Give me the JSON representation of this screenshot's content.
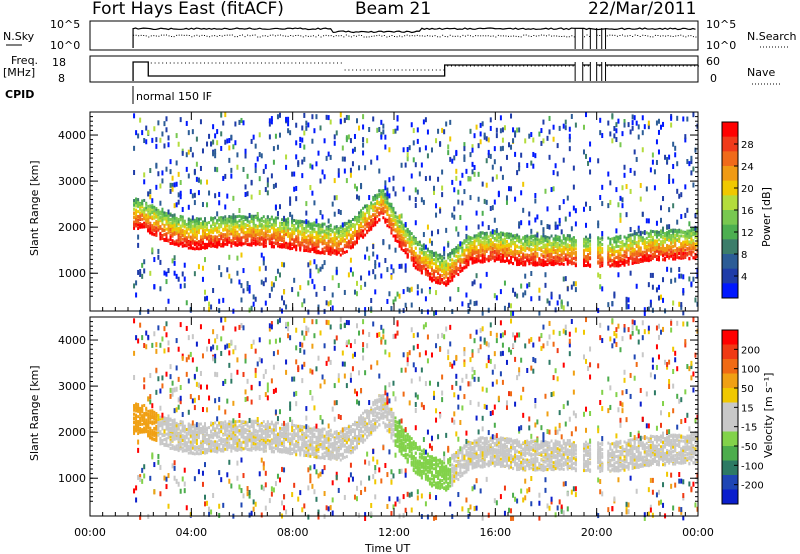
{
  "header": {
    "station": "Fort Hays East (fitACF)",
    "beam": "Beam 21",
    "date": "22/Mar/2011"
  },
  "top_panels": {
    "nsky_label": "N.Sky",
    "nsky_ticks": [
      "10^5",
      "10^0"
    ],
    "nsearch_label": "N.Search",
    "nsearch_ticks": [
      "10^5",
      "10^0"
    ],
    "freq_label": "Freq.",
    "freq_unit": "[MHz]",
    "freq_ticks": [
      "18",
      "8"
    ],
    "nave_label": "Nave",
    "nave_ticks": [
      "60",
      "0"
    ],
    "cpid_label": "CPID",
    "cpid_text": "normal 150 IF"
  },
  "power_colorbar": {
    "label": "Power [dB]",
    "ticks": [
      "28",
      "24",
      "20",
      "16",
      "12",
      "8",
      "4"
    ],
    "colors": [
      "#0018ff",
      "#1f3ca8",
      "#2c5c96",
      "#3c7d6a",
      "#4caf50",
      "#78c850",
      "#b4dc3c",
      "#f0c800",
      "#f09a14",
      "#f06a1a",
      "#f03a1a",
      "#ff0000"
    ]
  },
  "velocity_colorbar": {
    "label": "Velocity [m s⁻¹]",
    "ticks": [
      "200",
      "100",
      "50",
      "15",
      "-15",
      "-50",
      "-100",
      "-200"
    ],
    "colors": [
      "#0a1ecc",
      "#1f46b4",
      "#2d7a64",
      "#4cad4c",
      "#82d24a",
      "#c8c8c8",
      "#c8c8c8",
      "#f0c800",
      "#f0a014",
      "#f06a14",
      "#f03a14",
      "#ff0000"
    ]
  },
  "chart_data": {
    "type": "heatmap",
    "xlabel": "Time UT",
    "ylabel": "Slant Range [km]",
    "x_ticks": [
      "00:00",
      "04:00",
      "08:00",
      "12:00",
      "16:00",
      "20:00",
      "00:00"
    ],
    "x_range_hours": [
      0,
      24
    ],
    "y_ticks": [
      1000,
      2000,
      3000,
      4000
    ],
    "y_range_km": [
      180,
      4500
    ],
    "data_start_hour": 1.7,
    "gaps_hours": [
      [
        19.15,
        19.45
      ],
      [
        19.75,
        20.0
      ],
      [
        20.2,
        20.35
      ]
    ],
    "power_backscatter_band_km": [
      [
        2.0,
        2250
      ],
      [
        3.0,
        1950
      ],
      [
        4.0,
        1800
      ],
      [
        5.0,
        1850
      ],
      [
        6.0,
        1880
      ],
      [
        7.0,
        1860
      ],
      [
        8.0,
        1800
      ],
      [
        9.0,
        1720
      ],
      [
        9.8,
        1650
      ],
      [
        10.4,
        1850
      ],
      [
        11.0,
        2200
      ],
      [
        11.5,
        2500
      ],
      [
        12.0,
        2000
      ],
      [
        12.8,
        1400
      ],
      [
        13.5,
        1100
      ],
      [
        14.0,
        1000
      ],
      [
        15.0,
        1500
      ],
      [
        16.0,
        1550
      ],
      [
        17.0,
        1450
      ],
      [
        18.0,
        1450
      ],
      [
        19.0,
        1450
      ],
      [
        20.5,
        1400
      ],
      [
        22.0,
        1550
      ],
      [
        23.9,
        1600
      ]
    ],
    "power_panel": "Power [dB]",
    "velocity_panel": "Velocity [m s⁻¹]"
  }
}
